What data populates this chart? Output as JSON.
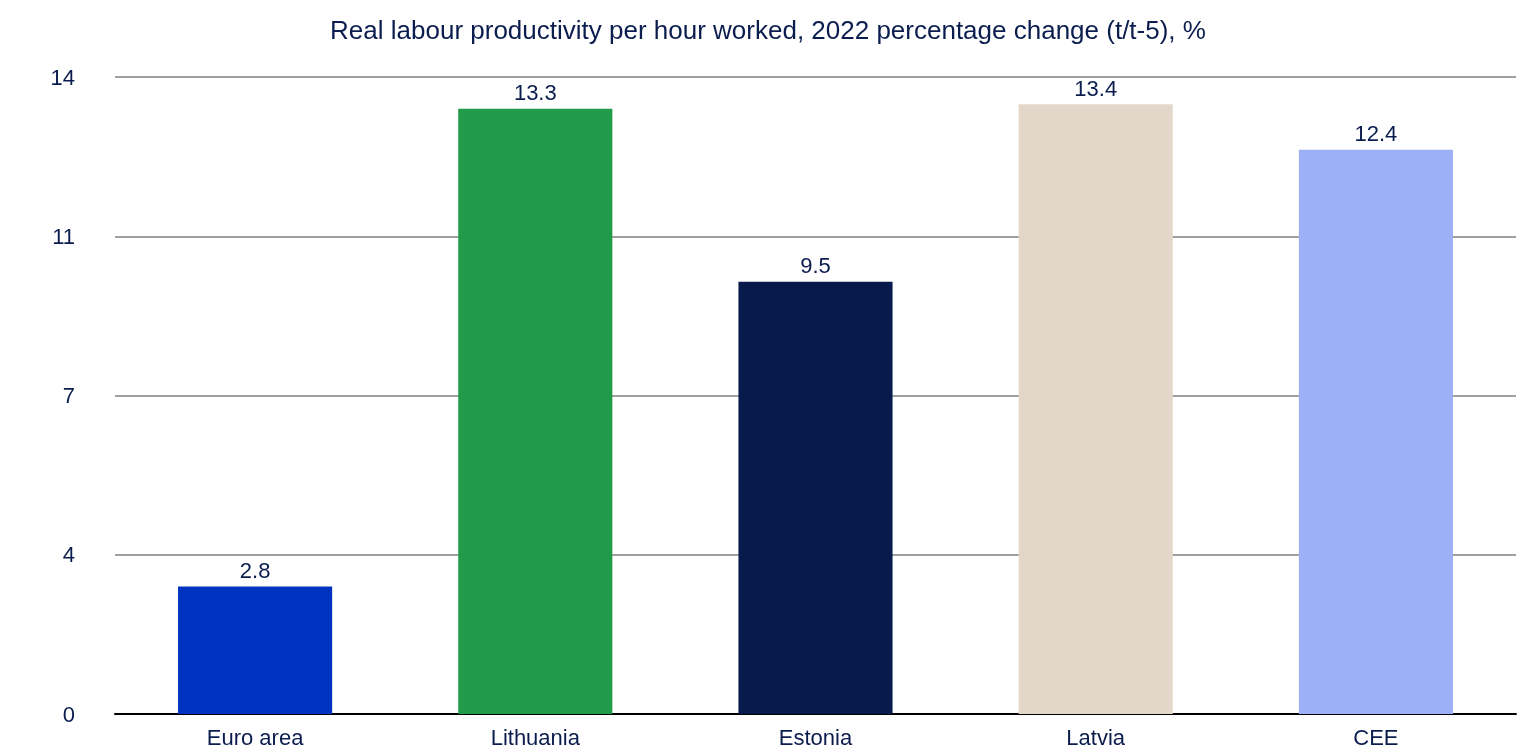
{
  "chart_data": {
    "type": "bar",
    "title": "Real labour productivity per hour worked, 2022 percentage change (t/t-5), %",
    "categories": [
      "Euro area",
      "Lithuania",
      "Estonia",
      "Latvia",
      "CEE"
    ],
    "values": [
      2.8,
      13.3,
      9.5,
      13.4,
      12.4
    ],
    "colors": [
      "#0033c0",
      "#219a4a",
      "#08194c",
      "#e3d7ca",
      "#9bb0f7"
    ],
    "ylim": [
      0,
      14
    ],
    "yticks": [
      0,
      {
        "value": 3.5,
        "label": "4"
      },
      7,
      {
        "value": 10.5,
        "label": "11"
      },
      14
    ],
    "grid": "y",
    "data_labels": true
  }
}
